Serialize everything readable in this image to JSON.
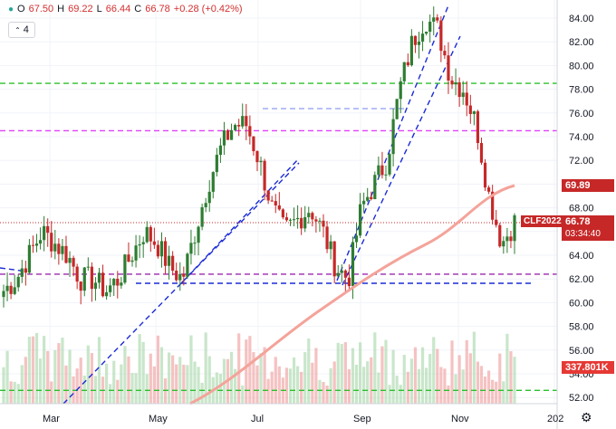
{
  "header": {
    "open_label": "O",
    "open": "67.50",
    "high_label": "H",
    "high": "69.22",
    "low_label": "L",
    "low": "66.44",
    "close_label": "C",
    "close": "66.78",
    "change": "+0.28 (+0.42%)",
    "indicator_count": "4"
  },
  "chart_data": {
    "type": "candlestick",
    "symbol": "CLF2022",
    "x_ticks": [
      "Mar",
      "May",
      "Jul",
      "Sep",
      "Nov",
      "202"
    ],
    "y_ticks": [
      52,
      54,
      56,
      58,
      60,
      62,
      64,
      66,
      68,
      70,
      72,
      74,
      76,
      78,
      80,
      82,
      84
    ],
    "ylim": [
      51.0,
      85.3
    ],
    "last_price": "66.78",
    "last_price_countdown": "03:34:40",
    "ma_value": "69.89",
    "volume_value": "337.801K",
    "horizontal_levels": [
      {
        "value": 78.5,
        "color": "#2bc02b",
        "style": "dashed"
      },
      {
        "value": 74.5,
        "color": "#e040fb",
        "style": "dashed"
      },
      {
        "value": 62.4,
        "color": "#9c27b0",
        "style": "dashed"
      },
      {
        "value": 52.6,
        "color": "#2bc02b",
        "style": "dashed"
      }
    ],
    "series_close_approx": [
      61,
      62,
      64,
      66,
      65,
      64,
      62,
      62,
      61,
      62,
      64,
      66,
      65,
      63,
      62,
      66,
      70,
      73,
      75,
      75,
      72,
      68,
      66,
      67,
      68,
      66,
      63,
      62,
      68,
      70,
      72,
      78,
      82,
      84,
      83,
      79,
      78,
      75,
      69,
      65,
      66.8
    ],
    "colors": {
      "up": "#2e7d32",
      "down": "#c62828",
      "ma": "#f4a39a",
      "trend": "#1a2bd6"
    }
  }
}
